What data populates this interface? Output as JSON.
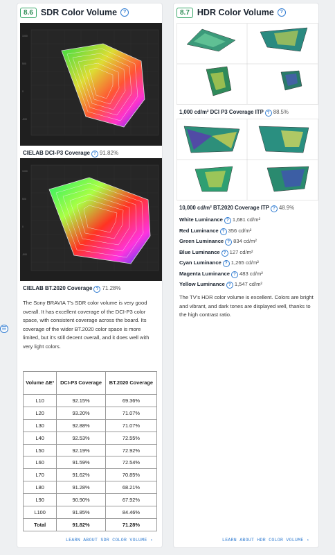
{
  "left": {
    "badge": "8.6",
    "title": "SDR Color Volume",
    "caption1_label": "CIELAB DCI-P3 Coverage",
    "caption1_value": "91.82%",
    "caption2_label": "CIELAB BT.2020 Coverage",
    "caption2_value": "71.28%",
    "paragraph": "The Sony BRAVIA 7's SDR color volume is very good overall. It has excellent coverage of the DCI-P3 color space, with consistent coverage across the board. Its coverage of the wider BT.2020 color space is more limited, but it's still decent overall, and it does well with very light colors.",
    "table": {
      "headers": [
        "Volume ΔE³",
        "DCI-P3 Coverage",
        "BT.2020 Coverage"
      ],
      "rows": [
        [
          "L10",
          "92.15%",
          "69.36%"
        ],
        [
          "L20",
          "93.20%",
          "71.07%"
        ],
        [
          "L30",
          "92.88%",
          "71.07%"
        ],
        [
          "L40",
          "92.53%",
          "72.55%"
        ],
        [
          "L50",
          "92.19%",
          "72.92%"
        ],
        [
          "L60",
          "91.59%",
          "72.54%"
        ],
        [
          "L70",
          "91.62%",
          "70.85%"
        ],
        [
          "L80",
          "91.28%",
          "68.21%"
        ],
        [
          "L90",
          "90.90%",
          "67.92%"
        ],
        [
          "L100",
          "91.85%",
          "84.46%"
        ]
      ],
      "total": [
        "Total",
        "91.82%",
        "71.28%"
      ]
    },
    "learn_link": "LEARN ABOUT SDR COLOR VOLUME ›"
  },
  "right": {
    "badge": "8.7",
    "title": "HDR Color Volume",
    "caption1_label": "1,000 cd/m² DCI P3 Coverage ITP",
    "caption1_value": "88.5%",
    "caption2_label": "10,000 cd/m² BT.2020 Coverage ITP",
    "caption2_value": "48.9%",
    "luminance": [
      {
        "label": "White Luminance",
        "value": "1,681 cd/m²"
      },
      {
        "label": "Red Luminance",
        "value": "356 cd/m²"
      },
      {
        "label": "Green Luminance",
        "value": "834 cd/m²"
      },
      {
        "label": "Blue Luminance",
        "value": "127 cd/m²"
      },
      {
        "label": "Cyan Luminance",
        "value": "1,265 cd/m²"
      },
      {
        "label": "Magenta Luminance",
        "value": "483 cd/m²"
      },
      {
        "label": "Yellow Luminance",
        "value": "1,547 cd/m²"
      }
    ],
    "paragraph": "The TV's HDR color volume is excellent. Colors are bright and vibrant, and dark tones are displayed well, thanks to the high contrast ratio.",
    "learn_link": "LEARN ABOUT HDR COLOR VOLUME ›"
  },
  "colors": {
    "accent": "#2f7bd1",
    "badge_green": "#3aa86a"
  }
}
